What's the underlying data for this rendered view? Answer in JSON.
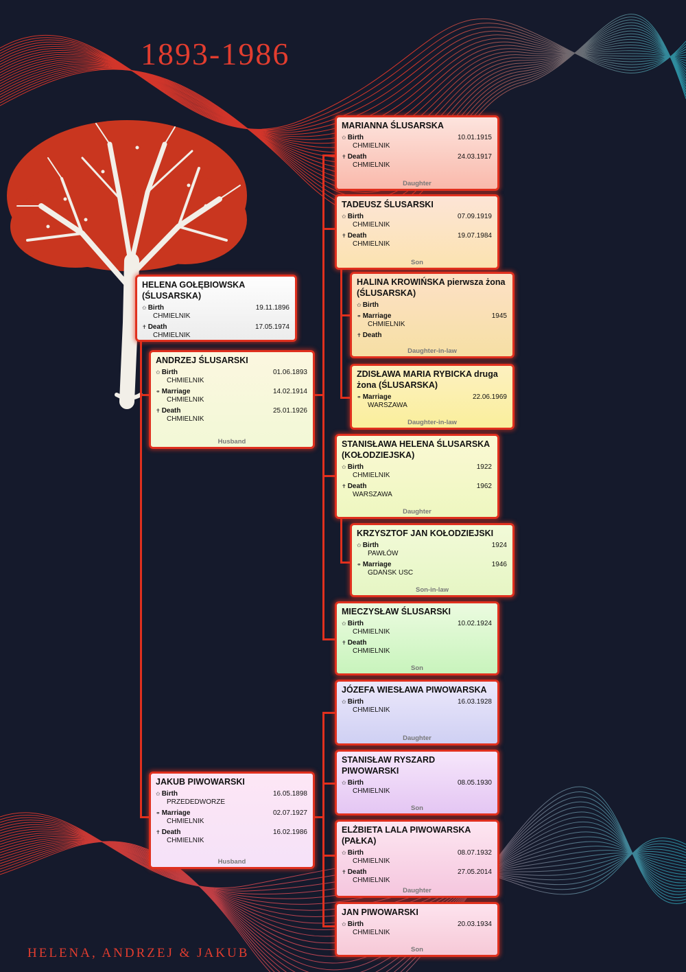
{
  "header": {
    "years": "1893-1986"
  },
  "footer": {
    "names": "HELENA, ANDRZEJ & JAKUB"
  },
  "persons": [
    {
      "name": "HELENA GOŁĘBIOWSKA (ŚLUSARSKA)",
      "role": "",
      "events": [
        {
          "label": "Birth",
          "symbol": "✩",
          "date": "19.11.1896",
          "place": "CHMIELNIK"
        },
        {
          "label": "Death",
          "symbol": "✝",
          "date": "17.05.1974",
          "place": "CHMIELNIK"
        }
      ]
    },
    {
      "name": "ANDRZEJ ŚLUSARSKI",
      "role": "Husband",
      "events": [
        {
          "label": "Birth",
          "symbol": "✩",
          "date": "01.06.1893",
          "place": "CHMIELNIK"
        },
        {
          "label": "Marriage",
          "symbol": "⚭",
          "date": "14.02.1914",
          "place": "CHMIELNIK"
        },
        {
          "label": "Death",
          "symbol": "✝",
          "date": "25.01.1926",
          "place": "CHMIELNIK"
        }
      ]
    },
    {
      "name": "JAKUB PIWOWARSKI",
      "role": "Husband",
      "events": [
        {
          "label": "Birth",
          "symbol": "✩",
          "date": "16.05.1898",
          "place": "PRZEDEDWORZE"
        },
        {
          "label": "Marriage",
          "symbol": "⚭",
          "date": "02.07.1927",
          "place": "CHMIELNIK"
        },
        {
          "label": "Death",
          "symbol": "✝",
          "date": "16.02.1986",
          "place": "CHMIELNIK"
        }
      ]
    },
    {
      "name": "MARIANNA ŚLUSARSKA",
      "role": "Daughter",
      "events": [
        {
          "label": "Birth",
          "symbol": "✩",
          "date": "10.01.1915",
          "place": "CHMIELNIK"
        },
        {
          "label": "Death",
          "symbol": "✝",
          "date": "24.03.1917",
          "place": "CHMIELNIK"
        }
      ]
    },
    {
      "name": "TADEUSZ ŚLUSARSKI",
      "role": "Son",
      "events": [
        {
          "label": "Birth",
          "symbol": "✩",
          "date": "07.09.1919",
          "place": "CHMIELNIK"
        },
        {
          "label": "Death",
          "symbol": "✝",
          "date": "19.07.1984",
          "place": "CHMIELNIK"
        }
      ]
    },
    {
      "name": "HALINA KROWIŃSKA pierwsza żona (ŚLUSARSKA)",
      "role": "Daughter-in-law",
      "events": [
        {
          "label": "Birth",
          "symbol": "✩",
          "date": "",
          "place": ""
        },
        {
          "label": "Marriage",
          "symbol": "⚭",
          "date": "1945",
          "place": "CHMIELNIK"
        },
        {
          "label": "Death",
          "symbol": "✝",
          "date": "",
          "place": ""
        }
      ]
    },
    {
      "name": "ZDISŁAWA MARIA RYBICKA druga żona (ŚLUSARSKA)",
      "role": "Daughter-in-law",
      "events": [
        {
          "label": "Marriage",
          "symbol": "⚭",
          "date": "22.06.1969",
          "place": "WARSZAWA"
        }
      ]
    },
    {
      "name": "STANISŁAWA HELENA ŚLUSARSKA (KOŁODZIEJSKA)",
      "role": "Daughter",
      "events": [
        {
          "label": "Birth",
          "symbol": "✩",
          "date": "1922",
          "place": "CHMIELNIK"
        },
        {
          "label": "Death",
          "symbol": "✝",
          "date": "1962",
          "place": "WARSZAWA"
        }
      ]
    },
    {
      "name": "KRZYSZTOF JAN KOŁODZIEJSKI",
      "role": "Son-in-law",
      "events": [
        {
          "label": "Birth",
          "symbol": "✩",
          "date": "1924",
          "place": "PAWŁÓW"
        },
        {
          "label": "Marriage",
          "symbol": "⚭",
          "date": "1946",
          "place": "GDAŃSK USC"
        }
      ]
    },
    {
      "name": "MIECZYSŁAW ŚLUSARSKI",
      "role": "Son",
      "events": [
        {
          "label": "Birth",
          "symbol": "✩",
          "date": "10.02.1924",
          "place": "CHMIELNIK"
        },
        {
          "label": "Death",
          "symbol": "✝",
          "date": "",
          "place": "CHMIELNIK"
        }
      ]
    },
    {
      "name": "JÓZEFA WIESŁAWA PIWOWARSKA",
      "role": "Daughter",
      "events": [
        {
          "label": "Birth",
          "symbol": "✩",
          "date": "16.03.1928",
          "place": "CHMIELNIK"
        }
      ]
    },
    {
      "name": "STANISŁAW RYSZARD PIWOWARSKI",
      "role": "Son",
      "events": [
        {
          "label": "Birth",
          "symbol": "✩",
          "date": "08.05.1930",
          "place": "CHMIELNIK"
        }
      ]
    },
    {
      "name": "ELŻBIETA LALA PIWOWARSKA (PAŁKA)",
      "role": "Daughter",
      "events": [
        {
          "label": "Birth",
          "symbol": "✩",
          "date": "08.07.1932",
          "place": "CHMIELNIK"
        },
        {
          "label": "Death",
          "symbol": "✝",
          "date": "27.05.2014",
          "place": "CHMIELNIK"
        }
      ]
    },
    {
      "name": "JAN PIWOWARSKI",
      "role": "Son",
      "events": [
        {
          "label": "Birth",
          "symbol": "✩",
          "date": "20.03.1934",
          "place": "CHMIELNIK"
        }
      ]
    }
  ]
}
